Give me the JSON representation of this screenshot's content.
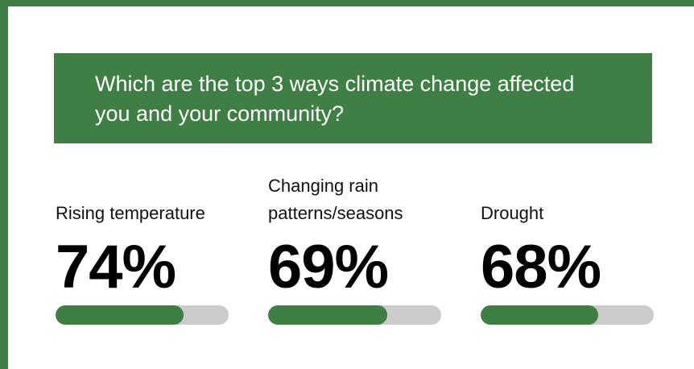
{
  "chart_data": {
    "type": "bar",
    "title": "Which are the top 3 ways climate change affected you and your community?",
    "categories": [
      "Rising temperature",
      "Changing rain patterns/seasons",
      "Drought"
    ],
    "values": [
      74,
      69,
      68
    ],
    "value_labels": [
      "74%",
      "69%",
      "68%"
    ],
    "ylim": [
      0,
      100
    ],
    "color": "#3f7f45"
  }
}
